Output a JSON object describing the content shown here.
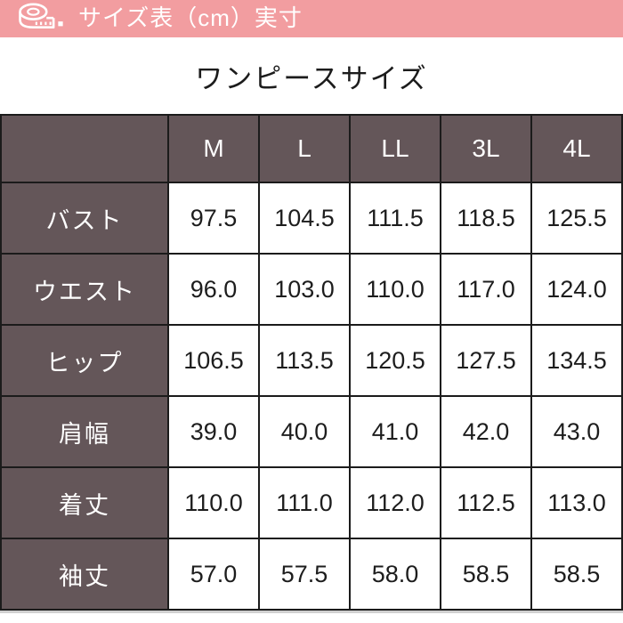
{
  "topbar": {
    "label": "サイズ表（cm）実寸",
    "icon": "tape-measure-icon",
    "bg_color": "#f29da0",
    "text_color": "#ffffff"
  },
  "title": "ワンピースサイズ",
  "colors": {
    "header_bg": "#645659",
    "header_text": "#ffffff",
    "cell_text": "#1d1d1d",
    "border": "#1b1b1b"
  },
  "chart_data": {
    "type": "table",
    "title": "ワンピースサイズ",
    "unit": "cm",
    "columns": [
      "M",
      "L",
      "LL",
      "3L",
      "4L"
    ],
    "rows": [
      {
        "label": "バスト",
        "values": [
          "97.5",
          "104.5",
          "111.5",
          "118.5",
          "125.5"
        ]
      },
      {
        "label": "ウエスト",
        "values": [
          "96.0",
          "103.0",
          "110.0",
          "117.0",
          "124.0"
        ]
      },
      {
        "label": "ヒップ",
        "values": [
          "106.5",
          "113.5",
          "120.5",
          "127.5",
          "134.5"
        ]
      },
      {
        "label": "肩幅",
        "values": [
          "39.0",
          "40.0",
          "41.0",
          "42.0",
          "43.0"
        ]
      },
      {
        "label": "着丈",
        "values": [
          "110.0",
          "111.0",
          "112.0",
          "112.5",
          "113.0"
        ]
      },
      {
        "label": "袖丈",
        "values": [
          "57.0",
          "57.5",
          "58.0",
          "58.5",
          "58.5"
        ]
      }
    ]
  }
}
